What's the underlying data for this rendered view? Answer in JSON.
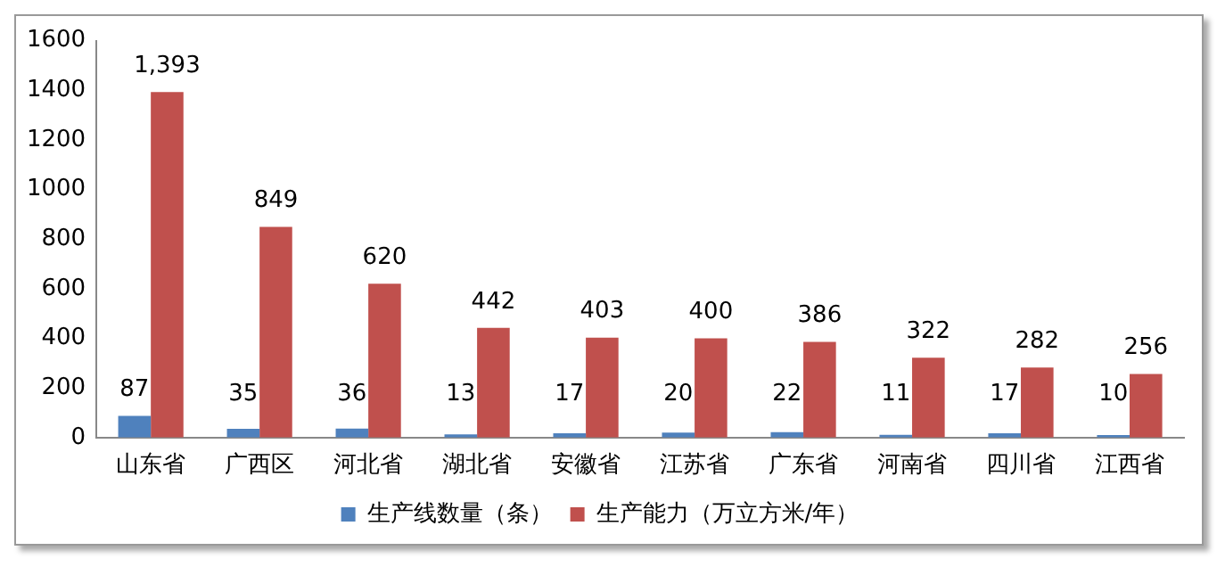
{
  "chart_data": {
    "type": "bar",
    "categories": [
      "山东省",
      "广西区",
      "河北省",
      "湖北省",
      "安徽省",
      "江苏省",
      "广东省",
      "河南省",
      "四川省",
      "江西省"
    ],
    "series": [
      {
        "name": "生产线数量（条）",
        "color": "#4f81bd",
        "values": [
          87,
          35,
          36,
          13,
          17,
          20,
          22,
          11,
          17,
          10
        ],
        "value_labels": [
          "87",
          "35",
          "36",
          "13",
          "17",
          "20",
          "22",
          "11",
          "17",
          "10"
        ]
      },
      {
        "name": "生产能力（万立方米/年）",
        "color": "#c0504d",
        "values": [
          1393,
          849,
          620,
          442,
          403,
          400,
          386,
          322,
          282,
          256
        ],
        "value_labels": [
          "1,393",
          "849",
          "620",
          "442",
          "403",
          "400",
          "386",
          "322",
          "282",
          "256"
        ]
      }
    ],
    "ylim": [
      0,
      1600
    ],
    "yticks": [
      0,
      200,
      400,
      600,
      800,
      1000,
      1200,
      1400,
      1600
    ],
    "grid": false,
    "legend": "bottom"
  }
}
